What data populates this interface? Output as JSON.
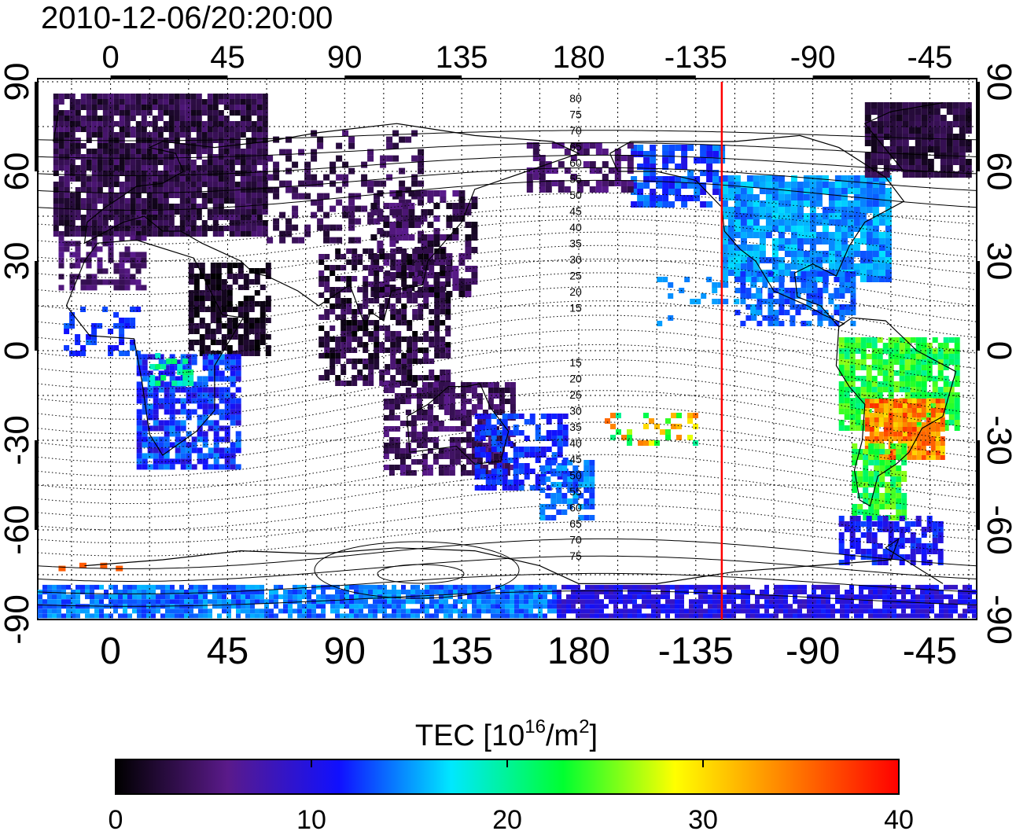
{
  "timestamp": "2010-12-06/20:20:00",
  "map": {
    "lon_ticks_top": [
      "0",
      "45",
      "90",
      "135",
      "180",
      "-135",
      "-90",
      "-45"
    ],
    "lon_ticks_bottom": [
      "0",
      "45",
      "90",
      "135",
      "180",
      "-135",
      "-90",
      "-45"
    ],
    "lat_ticks_left": [
      "90",
      "60",
      "30",
      "0",
      "-30",
      "-60",
      "-90"
    ],
    "lat_ticks_right": [
      "90",
      "60",
      "30",
      "0",
      "-30",
      "-60",
      "-90"
    ],
    "contour_labels_upper": [
      "80",
      "75",
      "70",
      "65",
      "60",
      "55",
      "50",
      "45",
      "40",
      "35",
      "30",
      "25",
      "20",
      "15"
    ],
    "contour_labels_lower": [
      "15",
      "20",
      "25",
      "30",
      "35",
      "40",
      "45",
      "50",
      "55",
      "60",
      "65",
      "70",
      "75"
    ],
    "marker_longitude": -125,
    "marker_color": "#ff0000"
  },
  "colorbar": {
    "label_prefix": "TEC  [10",
    "label_exp": "16",
    "label_mid": "/m",
    "label_exp2": "2",
    "label_suffix": "]",
    "ticks": [
      "0",
      "10",
      "20",
      "30",
      "40"
    ],
    "min": 0,
    "max": 40,
    "stops": [
      "#000000",
      "#5a1a8a",
      "#1010ff",
      "#00e8ff",
      "#00ff30",
      "#ffff00",
      "#ff8000",
      "#ff0000"
    ]
  }
}
